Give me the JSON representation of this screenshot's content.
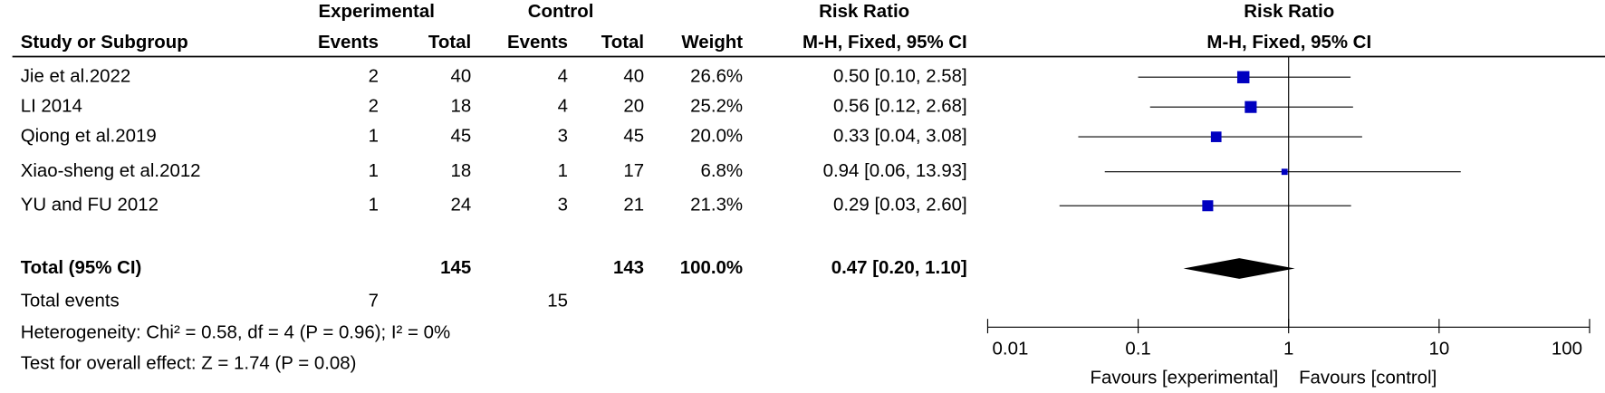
{
  "chart_data": {
    "type": "forest",
    "groups": [
      "Experimental",
      "Control",
      "Risk Ratio"
    ],
    "columns": [
      "Study or Subgroup",
      "Events",
      "Total",
      "Events",
      "Total",
      "Weight",
      "M-H, Fixed, 95% CI"
    ],
    "plot_title": "Risk Ratio",
    "plot_subtitle": "M-H, Fixed, 95% CI",
    "studies": [
      {
        "name": "Jie et al.2022",
        "exp_events": 2,
        "exp_total": 40,
        "ctl_events": 4,
        "ctl_total": 40,
        "weight": 26.6,
        "weight_label": "26.6%",
        "rr": 0.5,
        "lo": 0.1,
        "hi": 2.58,
        "ci_label": "0.50 [0.10, 2.58]"
      },
      {
        "name": "LI 2014",
        "exp_events": 2,
        "exp_total": 18,
        "ctl_events": 4,
        "ctl_total": 20,
        "weight": 25.2,
        "weight_label": "25.2%",
        "rr": 0.56,
        "lo": 0.12,
        "hi": 2.68,
        "ci_label": "0.56 [0.12, 2.68]"
      },
      {
        "name": "Qiong et al.2019",
        "exp_events": 1,
        "exp_total": 45,
        "ctl_events": 3,
        "ctl_total": 45,
        "weight": 20.0,
        "weight_label": "20.0%",
        "rr": 0.33,
        "lo": 0.04,
        "hi": 3.08,
        "ci_label": "0.33 [0.04, 3.08]"
      },
      {
        "name": "Xiao-sheng et al.2012",
        "exp_events": 1,
        "exp_total": 18,
        "ctl_events": 1,
        "ctl_total": 17,
        "weight": 6.8,
        "weight_label": "6.8%",
        "rr": 0.94,
        "lo": 0.06,
        "hi": 13.93,
        "ci_label": "0.94 [0.06, 13.93]"
      },
      {
        "name": "YU and FU 2012",
        "exp_events": 1,
        "exp_total": 24,
        "ctl_events": 3,
        "ctl_total": 21,
        "weight": 21.3,
        "weight_label": "21.3%",
        "rr": 0.29,
        "lo": 0.03,
        "hi": 2.6,
        "ci_label": "0.29 [0.03, 2.60]"
      }
    ],
    "total": {
      "name": "Total (95% CI)",
      "exp_total": 145,
      "ctl_total": 143,
      "weight": 100.0,
      "weight_label": "100.0%",
      "rr": 0.47,
      "lo": 0.2,
      "hi": 1.1,
      "ci_label": "0.47 [0.20, 1.10]"
    },
    "total_events": {
      "name": "Total events",
      "exp_events": 7,
      "ctl_events": 15
    },
    "heterogeneity": "Heterogeneity: Chi² = 0.58, df = 4 (P = 0.96); I² = 0%",
    "overall_effect": "Test for overall effect: Z = 1.74 (P = 0.08)",
    "log_scale": true,
    "xlim": [
      0.01,
      100
    ],
    "xticks": [
      0.01,
      0.1,
      1,
      10,
      100
    ],
    "xlabel_left": "Favours [experimental]",
    "xlabel_right": "Favours [control]",
    "color": "#0000c0"
  }
}
